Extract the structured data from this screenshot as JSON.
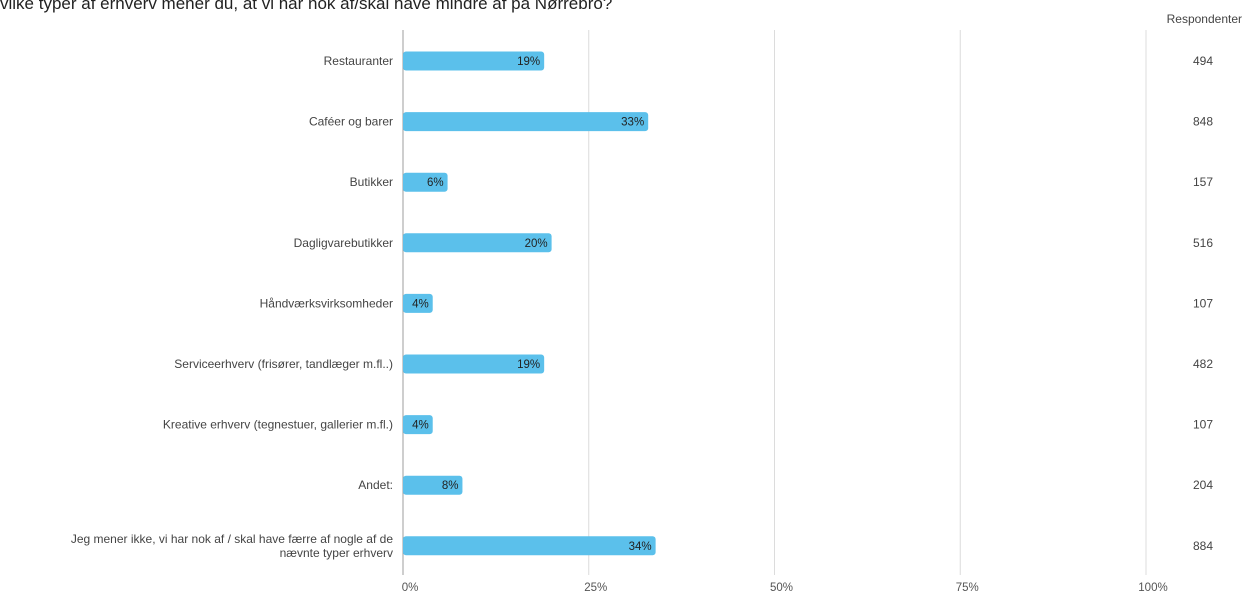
{
  "title": "vilke typer af erhverv mener du, at vi har nok af/skal have mindre af på Nørrebro?",
  "respondents_header": "Respondenter",
  "chart_data": {
    "type": "bar",
    "orientation": "horizontal",
    "title": "",
    "xlabel": "",
    "ylabel": "",
    "xlim": [
      0,
      100
    ],
    "x_ticks": [
      "0%",
      "25%",
      "50%",
      "75%",
      "100%"
    ],
    "grid": true,
    "bar_color": "#5BC0EB",
    "categories": [
      [
        "Restauranter"
      ],
      [
        "Caféer og barer"
      ],
      [
        "Butikker"
      ],
      [
        "Dagligvarebutikker"
      ],
      [
        "Håndværksvirksomheder"
      ],
      [
        "Serviceerhverv (frisører, tandlæger m.fl..)"
      ],
      [
        "Kreative erhverv (tegnestuer, gallerier m.fl.)"
      ],
      [
        "Andet:"
      ],
      [
        "Jeg mener ikke, vi har nok af / skal have færre af nogle af de",
        "nævnte typer erhverv"
      ]
    ],
    "values": [
      19,
      33,
      6,
      20,
      4,
      19,
      4,
      8,
      34
    ],
    "value_labels": [
      "19%",
      "33%",
      "6%",
      "20%",
      "4%",
      "19%",
      "4%",
      "8%",
      "34%"
    ],
    "respondents": [
      "494",
      "848",
      "157",
      "516",
      "107",
      "482",
      "107",
      "204",
      "884"
    ]
  }
}
